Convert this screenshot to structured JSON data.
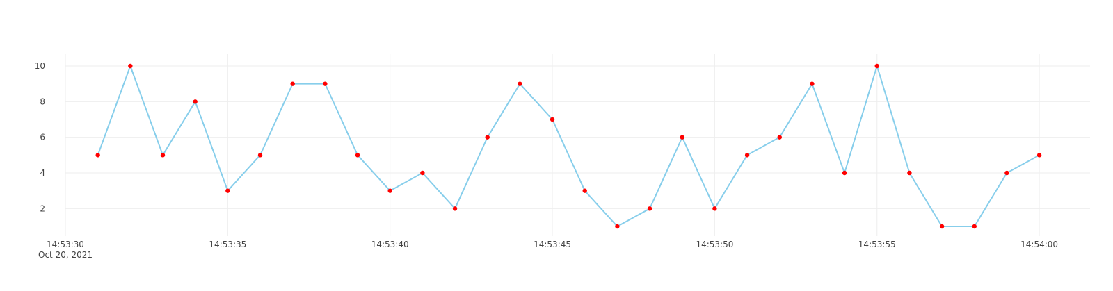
{
  "chart_data": {
    "type": "line",
    "title": "",
    "xlabel": "",
    "ylabel": "",
    "x_axis": {
      "kind": "time",
      "date_label": "Oct 20, 2021",
      "range": [
        "2021-10-20 14:53:30",
        "2021-10-20 14:54:01.5"
      ],
      "ticks": [
        "14:53:30",
        "14:53:35",
        "14:53:40",
        "14:53:45",
        "14:53:50",
        "14:53:55",
        "14:54:00"
      ]
    },
    "y_axis": {
      "range": [
        0.35,
        10.65
      ],
      "ticks": [
        2,
        4,
        6,
        8,
        10
      ]
    },
    "grid": true,
    "legend": "none",
    "colors": {
      "line": "#87ceeb",
      "marker": "#ff0000",
      "grid": "#eeeeee",
      "text": "#444444"
    },
    "series": [
      {
        "x": [
          "14:53:31",
          "14:53:32",
          "14:53:33",
          "14:53:34",
          "14:53:35",
          "14:53:36",
          "14:53:37",
          "14:53:38",
          "14:53:39",
          "14:53:40",
          "14:53:41",
          "14:53:42",
          "14:53:43",
          "14:53:44",
          "14:53:45",
          "14:53:46",
          "14:53:47",
          "14:53:48",
          "14:53:49",
          "14:53:50",
          "14:53:51",
          "14:53:52",
          "14:53:53",
          "14:53:54",
          "14:53:55",
          "14:53:56",
          "14:53:57",
          "14:53:58",
          "14:53:59",
          "14:54:00"
        ],
        "values": [
          5,
          10,
          5,
          8,
          3,
          5,
          9,
          9,
          5,
          3,
          4,
          2,
          6,
          9,
          7,
          3,
          1,
          2,
          6,
          2,
          5,
          6,
          9,
          4,
          10,
          4,
          1,
          1,
          4,
          5
        ]
      }
    ]
  }
}
